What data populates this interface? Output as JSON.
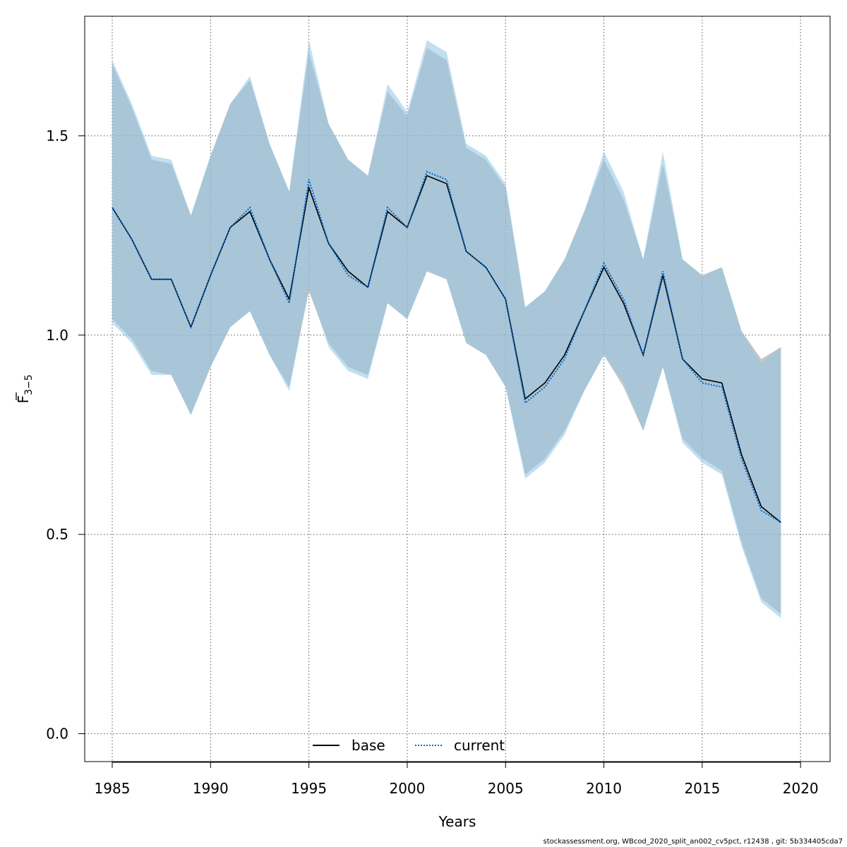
{
  "chart_data": {
    "type": "line",
    "xlabel": "Years",
    "ylabel": "F3-5",
    "ylabel_main": "F",
    "ylabel_sub": "3−5",
    "xlim": [
      1983.6,
      2021.5
    ],
    "ylim": [
      -0.07,
      1.8
    ],
    "xticks": [
      1985,
      1990,
      1995,
      2000,
      2005,
      2010,
      2015,
      2020
    ],
    "yticks": [
      0.0,
      0.5,
      1.0,
      1.5
    ],
    "xtick_labels": [
      "1985",
      "1990",
      "1995",
      "2000",
      "2005",
      "2010",
      "2015",
      "2020"
    ],
    "ytick_labels": [
      "0.0",
      "0.5",
      "1.0",
      "1.5"
    ],
    "grid": true,
    "legend_position": "bottom-center",
    "x": [
      1985,
      1986,
      1987,
      1988,
      1989,
      1990,
      1991,
      1992,
      1993,
      1994,
      1995,
      1996,
      1997,
      1998,
      1999,
      2000,
      2001,
      2002,
      2003,
      2004,
      2005,
      2006,
      2007,
      2008,
      2009,
      2010,
      2011,
      2012,
      2013,
      2014,
      2015,
      2016,
      2017,
      2018,
      2019
    ],
    "series": [
      {
        "name": "base",
        "color": "#000000",
        "band_color": "#999999",
        "dash": "solid",
        "values": [
          1.32,
          1.24,
          1.14,
          1.14,
          1.02,
          1.15,
          1.27,
          1.31,
          1.19,
          1.09,
          1.37,
          1.23,
          1.16,
          1.12,
          1.31,
          1.27,
          1.4,
          1.38,
          1.21,
          1.17,
          1.09,
          0.84,
          0.88,
          0.95,
          1.06,
          1.17,
          1.08,
          0.95,
          1.15,
          0.94,
          0.89,
          0.88,
          0.7,
          0.57,
          0.53
        ],
        "lower": [
          1.04,
          0.99,
          0.91,
          0.9,
          0.8,
          0.92,
          1.02,
          1.06,
          0.95,
          0.87,
          1.11,
          0.98,
          0.92,
          0.9,
          1.08,
          1.04,
          1.16,
          1.14,
          0.98,
          0.95,
          0.87,
          0.65,
          0.69,
          0.76,
          0.86,
          0.95,
          0.87,
          0.76,
          0.92,
          0.74,
          0.69,
          0.66,
          0.48,
          0.34,
          0.3
        ],
        "upper": [
          1.68,
          1.57,
          1.44,
          1.43,
          1.3,
          1.45,
          1.58,
          1.64,
          1.48,
          1.36,
          1.71,
          1.53,
          1.44,
          1.4,
          1.61,
          1.55,
          1.72,
          1.69,
          1.47,
          1.44,
          1.37,
          1.07,
          1.11,
          1.19,
          1.31,
          1.44,
          1.34,
          1.19,
          1.43,
          1.19,
          1.15,
          1.17,
          1.01,
          0.94,
          0.97
        ]
      },
      {
        "name": "current",
        "color": "#0066cc",
        "band_color": "#8ec4e6",
        "dash": "dotted",
        "values": [
          1.32,
          1.24,
          1.14,
          1.14,
          1.02,
          1.15,
          1.27,
          1.32,
          1.19,
          1.08,
          1.39,
          1.23,
          1.15,
          1.12,
          1.32,
          1.27,
          1.41,
          1.39,
          1.21,
          1.17,
          1.09,
          0.83,
          0.87,
          0.94,
          1.06,
          1.18,
          1.09,
          0.95,
          1.16,
          0.94,
          0.88,
          0.87,
          0.69,
          0.56,
          0.53
        ],
        "lower": [
          1.03,
          0.98,
          0.9,
          0.9,
          0.8,
          0.92,
          1.02,
          1.06,
          0.95,
          0.86,
          1.12,
          0.97,
          0.91,
          0.89,
          1.08,
          1.04,
          1.16,
          1.14,
          0.98,
          0.95,
          0.87,
          0.64,
          0.68,
          0.75,
          0.86,
          0.95,
          0.88,
          0.76,
          0.92,
          0.73,
          0.68,
          0.65,
          0.47,
          0.33,
          0.29
        ],
        "upper": [
          1.69,
          1.58,
          1.45,
          1.44,
          1.3,
          1.45,
          1.58,
          1.65,
          1.48,
          1.36,
          1.74,
          1.53,
          1.44,
          1.4,
          1.63,
          1.56,
          1.74,
          1.71,
          1.48,
          1.45,
          1.38,
          1.07,
          1.11,
          1.19,
          1.31,
          1.46,
          1.36,
          1.19,
          1.46,
          1.19,
          1.15,
          1.17,
          1.01,
          0.93,
          0.97
        ]
      }
    ],
    "legend": [
      {
        "label": "base",
        "color": "#000000",
        "dash": "solid"
      },
      {
        "label": "current",
        "color": "#0066cc",
        "dash": "dotted"
      }
    ]
  },
  "footer": "stockassessment.org, WBcod_2020_split_an002_cv5pct, r12438 , git: 5b334405cda7"
}
